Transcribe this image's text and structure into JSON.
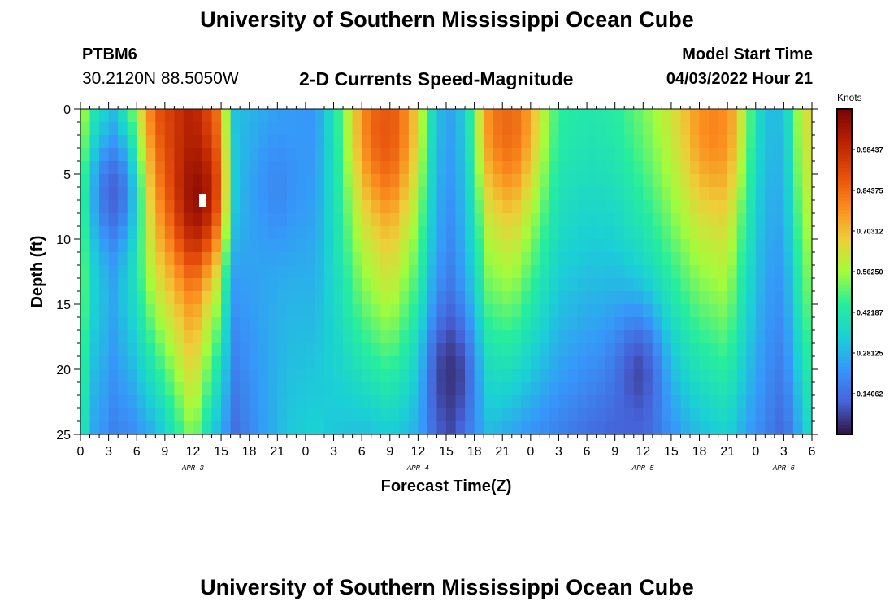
{
  "page": {
    "title_top": "University of Southern Mississippi Ocean Cube",
    "title_bottom": "University of Southern Mississippi Ocean Cube",
    "station_id": "PTBM6",
    "coordinates": "30.2120N  88.5050W",
    "subtitle": "2-D Currents Speed-Magnitude",
    "model_start_label": "Model Start Time",
    "model_start_value": "04/03/2022 Hour 21"
  },
  "chart_data": {
    "type": "heatmap",
    "title": "2-D Currents Speed-Magnitude",
    "xlabel": "Forecast Time(Z)",
    "ylabel": "Depth (ft)",
    "colorbar_label": "Knots",
    "xlim": [
      0,
      78
    ],
    "ylim": [
      0,
      25
    ],
    "y_ticks": [
      0,
      5,
      10,
      15,
      20,
      25
    ],
    "x_ticks": [
      {
        "x": 0,
        "label": "0"
      },
      {
        "x": 3,
        "label": "3"
      },
      {
        "x": 6,
        "label": "6"
      },
      {
        "x": 9,
        "label": "9"
      },
      {
        "x": 12,
        "label": "12"
      },
      {
        "x": 15,
        "label": "15"
      },
      {
        "x": 18,
        "label": "18"
      },
      {
        "x": 21,
        "label": "21"
      },
      {
        "x": 24,
        "label": "0"
      },
      {
        "x": 27,
        "label": "3"
      },
      {
        "x": 30,
        "label": "6"
      },
      {
        "x": 33,
        "label": "9"
      },
      {
        "x": 36,
        "label": "12"
      },
      {
        "x": 39,
        "label": "15"
      },
      {
        "x": 42,
        "label": "18"
      },
      {
        "x": 45,
        "label": "21"
      },
      {
        "x": 48,
        "label": "0"
      },
      {
        "x": 51,
        "label": "3"
      },
      {
        "x": 54,
        "label": "6"
      },
      {
        "x": 57,
        "label": "9"
      },
      {
        "x": 60,
        "label": "12"
      },
      {
        "x": 63,
        "label": "15"
      },
      {
        "x": 66,
        "label": "18"
      },
      {
        "x": 69,
        "label": "21"
      },
      {
        "x": 72,
        "label": "0"
      },
      {
        "x": 75,
        "label": "3"
      },
      {
        "x": 78,
        "label": "6"
      }
    ],
    "day_labels": [
      {
        "x": 12,
        "label": "APR 3"
      },
      {
        "x": 36,
        "label": "APR 4"
      },
      {
        "x": 60,
        "label": "APR 5"
      },
      {
        "x": 75,
        "label": "APR 6"
      }
    ],
    "colorbar_range": [
      0.0,
      1.125
    ],
    "colorbar_ticks": [
      {
        "value": 0.140625,
        "label": "0.14062"
      },
      {
        "value": 0.28125,
        "label": "0.28125"
      },
      {
        "value": 0.421875,
        "label": "0.42187"
      },
      {
        "value": 0.5625,
        "label": "0.56250"
      },
      {
        "value": 0.703125,
        "label": "0.70312"
      },
      {
        "value": 0.84375,
        "label": "0.84375"
      },
      {
        "value": 0.984375,
        "label": "0.98437"
      }
    ],
    "column_profiles": [
      {
        "x": 0,
        "surface": 0.62,
        "bottom": 0.45
      },
      {
        "x": 1.5,
        "surface": 0.45,
        "bottom": 0.25
      },
      {
        "x": 3.5,
        "surface": 0.35,
        "bottom": 0.18
      },
      {
        "x": 5.5,
        "surface": 0.55,
        "bottom": 0.2
      },
      {
        "x": 8,
        "surface": 0.88,
        "bottom": 0.28
      },
      {
        "x": 12,
        "surface": 1.02,
        "bottom": 0.55
      },
      {
        "x": 14.5,
        "surface": 0.82,
        "bottom": 0.3
      },
      {
        "x": 16.5,
        "surface": 0.3,
        "bottom": 0.14
      },
      {
        "x": 19,
        "surface": 0.28,
        "bottom": 0.22
      },
      {
        "x": 22,
        "surface": 0.25,
        "bottom": 0.32
      },
      {
        "x": 25,
        "surface": 0.22,
        "bottom": 0.35
      },
      {
        "x": 27,
        "surface": 0.4,
        "bottom": 0.32
      },
      {
        "x": 30,
        "surface": 0.72,
        "bottom": 0.3
      },
      {
        "x": 33,
        "surface": 0.85,
        "bottom": 0.33
      },
      {
        "x": 36,
        "surface": 0.62,
        "bottom": 0.28
      },
      {
        "x": 38,
        "surface": 0.3,
        "bottom": 0.15
      },
      {
        "x": 39.5,
        "surface": 0.25,
        "bottom": 0.1
      },
      {
        "x": 41,
        "surface": 0.32,
        "bottom": 0.2
      },
      {
        "x": 43.5,
        "surface": 0.7,
        "bottom": 0.3
      },
      {
        "x": 46,
        "surface": 0.8,
        "bottom": 0.25
      },
      {
        "x": 49,
        "surface": 0.6,
        "bottom": 0.2
      },
      {
        "x": 51,
        "surface": 0.45,
        "bottom": 0.18
      },
      {
        "x": 54,
        "surface": 0.42,
        "bottom": 0.14
      },
      {
        "x": 57,
        "surface": 0.44,
        "bottom": 0.12
      },
      {
        "x": 60,
        "surface": 0.52,
        "bottom": 0.15
      },
      {
        "x": 63,
        "surface": 0.62,
        "bottom": 0.22
      },
      {
        "x": 66,
        "surface": 0.72,
        "bottom": 0.3
      },
      {
        "x": 69,
        "surface": 0.74,
        "bottom": 0.35
      },
      {
        "x": 71,
        "surface": 0.5,
        "bottom": 0.25
      },
      {
        "x": 73,
        "surface": 0.3,
        "bottom": 0.18
      },
      {
        "x": 75,
        "surface": 0.3,
        "bottom": 0.12
      },
      {
        "x": 76.5,
        "surface": 0.55,
        "bottom": 0.25
      },
      {
        "x": 78,
        "surface": 0.68,
        "bottom": 0.4
      }
    ],
    "extrema": [
      {
        "x": 3.5,
        "y": 6.5,
        "value": 0.12
      },
      {
        "x": 12.5,
        "y": 6.5,
        "value": 1.08
      },
      {
        "x": 21,
        "y": 6.0,
        "value": 0.2
      },
      {
        "x": 32.5,
        "y": 1.5,
        "value": 0.88
      },
      {
        "x": 39.5,
        "y": 20.5,
        "value": 0.05
      },
      {
        "x": 45.5,
        "y": 1.0,
        "value": 0.85
      },
      {
        "x": 59.5,
        "y": 20.5,
        "value": 0.08
      },
      {
        "x": 67.5,
        "y": 1.0,
        "value": 0.8
      }
    ],
    "marker": {
      "x": 13.0,
      "y": 7.0
    }
  },
  "colors": {
    "background": "#ffffff",
    "axis": "#000000",
    "marker": "#ffffff"
  }
}
